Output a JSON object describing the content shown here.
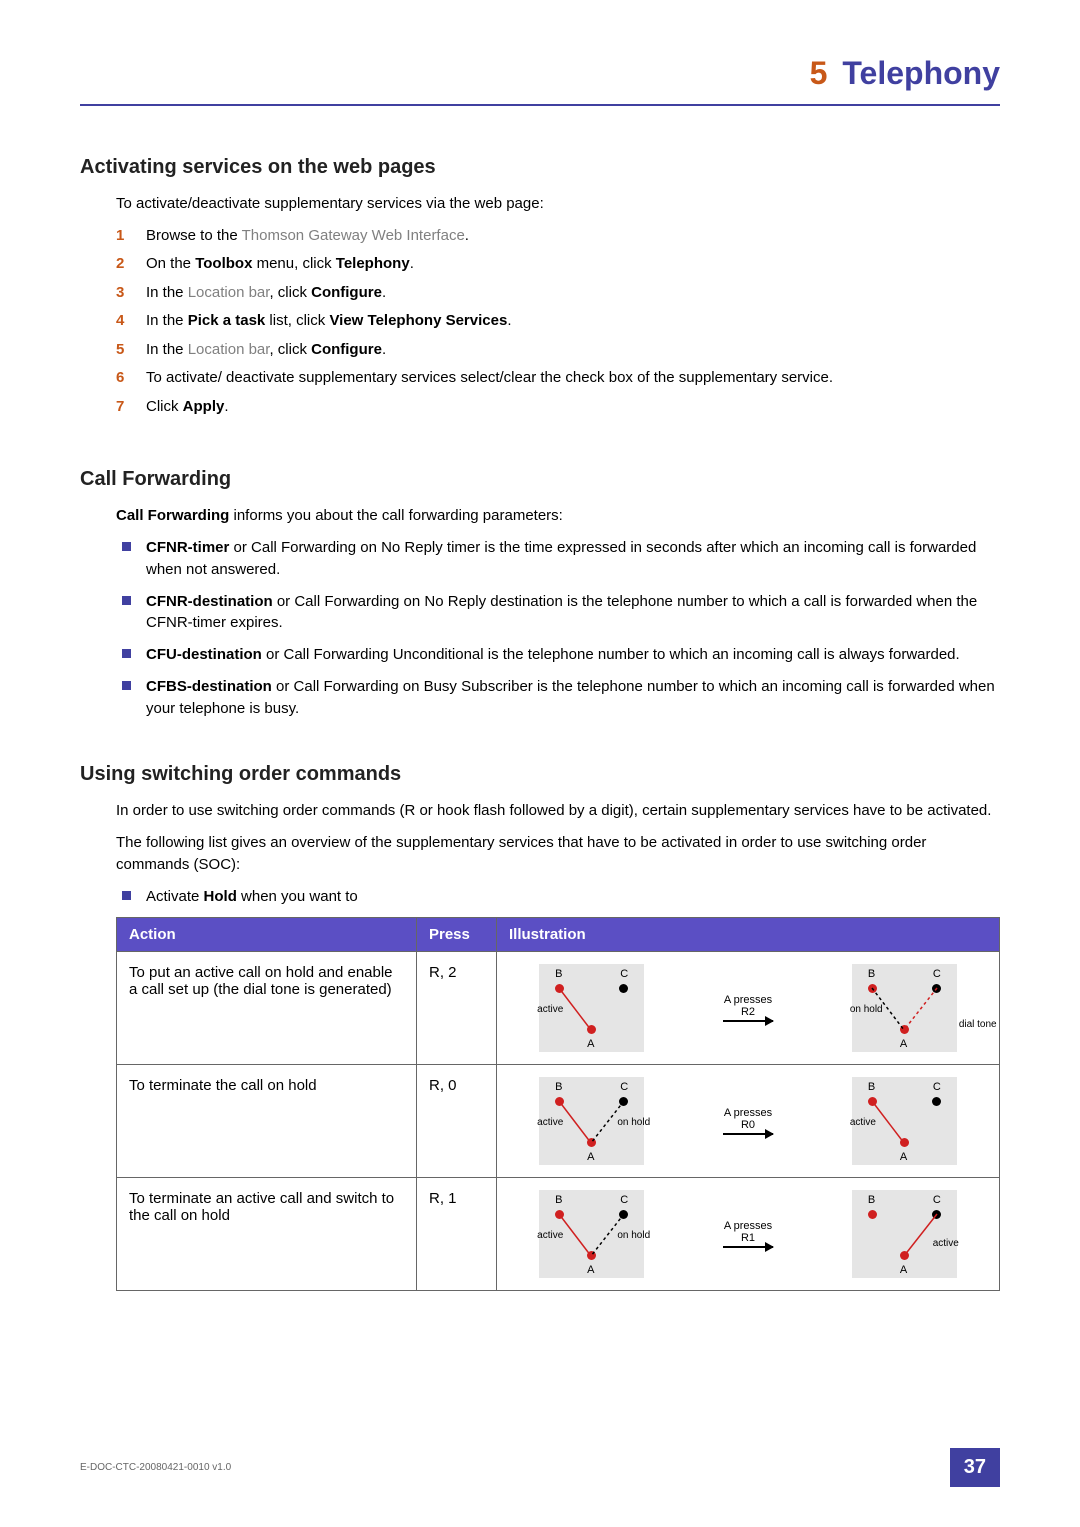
{
  "chapter": {
    "number": "5",
    "title": "Telephony"
  },
  "section1": {
    "title": "Activating services on the web pages",
    "intro": "To activate/deactivate supplementary services via the web page:",
    "steps": [
      {
        "n": "1",
        "pre": "Browse to the ",
        "link": "Thomson Gateway Web Interface",
        "post": "."
      },
      {
        "n": "2",
        "parts": [
          "On the ",
          "Toolbox",
          " menu, click ",
          "Telephony",
          "."
        ]
      },
      {
        "n": "3",
        "parts": [
          "In the ",
          "",
          "",
          "",
          ""
        ],
        "linkLabel": "Location bar",
        "postLink": ", click ",
        "bold": "Configure",
        "end": "."
      },
      {
        "n": "4",
        "parts2": [
          "In the ",
          "Pick a task",
          " list, click ",
          "View Telephony Services",
          "."
        ]
      },
      {
        "n": "5",
        "linkLabel": "Location bar",
        "pre2": "In the ",
        "postLink": ", click ",
        "bold": "Configure",
        "end": "."
      },
      {
        "n": "6",
        "plain": "To activate/ deactivate supplementary services select/clear the check box of the supplementary service."
      },
      {
        "n": "7",
        "pre3": "Click ",
        "bold": "Apply",
        "end": "."
      }
    ]
  },
  "section2": {
    "title": "Call Forwarding",
    "intro_b": "Call Forwarding",
    "intro_rest": " informs you about the call forwarding parameters:",
    "items": [
      {
        "b": "CFNR-timer",
        "rest": " or Call Forwarding on No Reply timer is the time expressed in seconds after which an incoming call is forwarded when not answered."
      },
      {
        "b": "CFNR-destination",
        "rest": " or Call Forwarding on No Reply destination is the telephone number to which a call is forwarded when the CFNR-timer expires."
      },
      {
        "b": "CFU-destination",
        "rest": " or Call Forwarding Unconditional is the telephone number to which an incoming call is always forwarded."
      },
      {
        "b": "CFBS-destination",
        "rest": " or Call Forwarding on Busy Subscriber is the telephone number to which an incoming call is forwarded when your telephone is busy."
      }
    ]
  },
  "section3": {
    "title": "Using switching order commands",
    "p1": "In order to use switching order commands (R or hook flash followed by a digit), certain supplementary services have to be activated.",
    "p2": "The following list gives an overview of the supplementary services that have to be activated in order to use switching order commands (SOC):",
    "bullet_pre": "Activate ",
    "bullet_b": "Hold",
    "bullet_post": " when you want to"
  },
  "table": {
    "headers": {
      "action": "Action",
      "press": "Press",
      "illus": "Illustration"
    },
    "rows": [
      {
        "action": "To put an active call on hold and enable a call set up (the dial tone is generated)",
        "press": "R, 2",
        "arrow": "A presses R2",
        "left": {
          "B": "B",
          "C": "C",
          "A": "A",
          "l1": "active",
          "c_dot": "black",
          "ab_line": "red"
        },
        "right": {
          "B": "B",
          "C": "C",
          "A": "A",
          "l1": "on hold",
          "dial": "dial tone",
          "c_dot": "black",
          "ab_dash": true,
          "ac_red_dash": true
        }
      },
      {
        "action": "To terminate the call on hold",
        "press": "R, 0",
        "arrow": "A presses R0",
        "left": {
          "B": "B",
          "C": "C",
          "A": "A",
          "l1": "active",
          "l2": "on hold",
          "c_dot": "black",
          "ab_line": "red",
          "ac_dash": true
        },
        "right": {
          "B": "B",
          "C": "C",
          "A": "A",
          "l1": "active",
          "c_dot": "black",
          "ab_line": "red"
        }
      },
      {
        "action": "To terminate an active call and switch to the call on hold",
        "press": "R, 1",
        "arrow": "A presses R1",
        "left": {
          "B": "B",
          "C": "C",
          "A": "A",
          "l1": "active",
          "l2": "on hold",
          "c_dot": "black",
          "ab_line": "red",
          "ac_dash": true
        },
        "right": {
          "B": "B",
          "C": "C",
          "A": "A",
          "r1": "active",
          "c_dot": "black",
          "ac_line": "red"
        }
      }
    ]
  },
  "footer": {
    "docref": "E-DOC-CTC-20080421-0010 v1.0",
    "page": "37"
  },
  "colors": {
    "accent": "#4040a0",
    "step": "#c85818",
    "link": "#808080",
    "tableHeader": "#5b4fc4"
  }
}
